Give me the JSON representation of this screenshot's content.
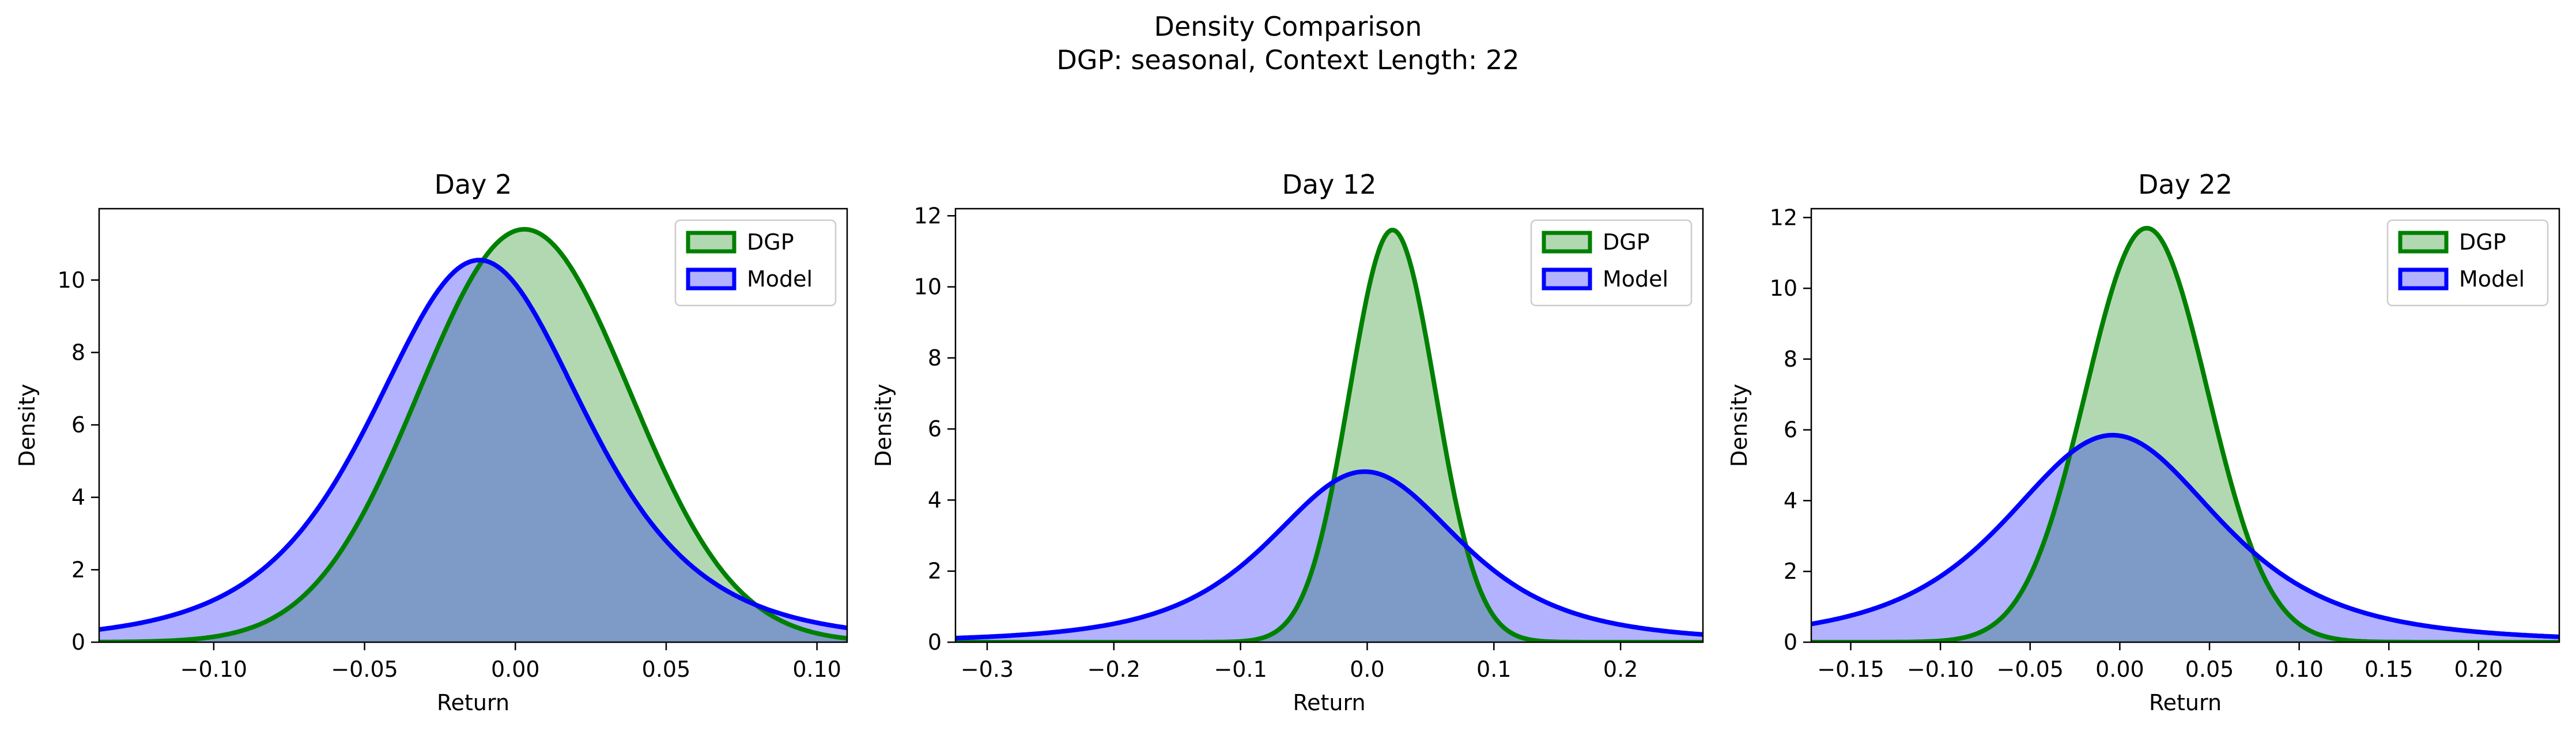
{
  "figure": {
    "title": "Density Comparison",
    "subtitle": "DGP: seasonal, Context Length: 22"
  },
  "colors": {
    "dgp_line": "#008000",
    "dgp_fill": "#b2d8b2",
    "model_line": "#0000ff",
    "model_fill": "#b2b2ff",
    "overlap_fill": "#7e9ac7"
  },
  "chart_data": [
    {
      "type": "area",
      "title": "Day 2",
      "xlabel": "Return",
      "ylabel": "Density",
      "xlim": [
        -0.138,
        0.11
      ],
      "ylim": [
        0,
        11.97
      ],
      "xticks": [
        -0.1,
        -0.05,
        0.0,
        0.05,
        0.1
      ],
      "xtick_labels": [
        "−0.10",
        "−0.05",
        "0.00",
        "0.05",
        "0.10"
      ],
      "yticks": [
        0,
        2,
        4,
        6,
        8,
        10
      ],
      "ytick_labels": [
        "0",
        "2",
        "4",
        "6",
        "8",
        "10"
      ],
      "legend_position": "top-right",
      "grid": false,
      "series": [
        {
          "name": "DGP",
          "shape": "gaussian",
          "peak_x": 0.003,
          "peak_y": 11.4,
          "sd": 0.035
        },
        {
          "name": "Model",
          "shape": "heavy-tailed",
          "peak_x": -0.012,
          "peak_y": 10.55,
          "sd": 0.037,
          "tail_df": 4
        }
      ]
    },
    {
      "type": "area",
      "title": "Day 12",
      "xlabel": "Return",
      "ylabel": "Density",
      "xlim": [
        -0.325,
        0.265
      ],
      "ylim": [
        0,
        12.2
      ],
      "xticks": [
        -0.3,
        -0.2,
        -0.1,
        0.0,
        0.1,
        0.2
      ],
      "xtick_labels": [
        "−0.3",
        "−0.2",
        "−0.1",
        "0.0",
        "0.1",
        "0.2"
      ],
      "yticks": [
        0,
        2,
        4,
        6,
        8,
        10,
        12
      ],
      "ytick_labels": [
        "0",
        "2",
        "4",
        "6",
        "8",
        "10",
        "12"
      ],
      "legend_position": "top-right",
      "grid": false,
      "series": [
        {
          "name": "DGP",
          "shape": "gaussian",
          "peak_x": 0.02,
          "peak_y": 11.6,
          "sd": 0.034
        },
        {
          "name": "Model",
          "shape": "heavy-tailed",
          "peak_x": -0.002,
          "peak_y": 4.8,
          "sd": 0.08,
          "tail_df": 3
        }
      ]
    },
    {
      "type": "area",
      "title": "Day 22",
      "xlabel": "Return",
      "ylabel": "Density",
      "xlim": [
        -0.172,
        0.245
      ],
      "ylim": [
        0,
        12.25
      ],
      "xticks": [
        -0.15,
        -0.1,
        -0.05,
        0.0,
        0.05,
        0.1,
        0.15,
        0.2
      ],
      "xtick_labels": [
        "−0.15",
        "−0.10",
        "−0.05",
        "0.00",
        "0.05",
        "0.10",
        "0.15",
        "0.20"
      ],
      "yticks": [
        0,
        2,
        4,
        6,
        8,
        10,
        12
      ],
      "ytick_labels": [
        "0",
        "2",
        "4",
        "6",
        "8",
        "10",
        "12"
      ],
      "legend_position": "top-right",
      "grid": false,
      "series": [
        {
          "name": "DGP",
          "shape": "gaussian",
          "peak_x": 0.015,
          "peak_y": 11.7,
          "sd": 0.034
        },
        {
          "name": "Model",
          "shape": "heavy-tailed",
          "peak_x": -0.004,
          "peak_y": 5.85,
          "sd": 0.063,
          "tail_df": 3
        }
      ]
    }
  ]
}
